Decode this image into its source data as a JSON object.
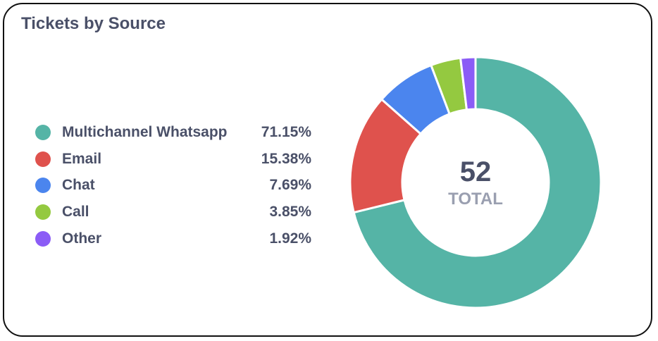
{
  "card": {
    "title": "Tickets by Source"
  },
  "center": {
    "total": "52",
    "label": "TOTAL"
  },
  "legend": {
    "items": [
      {
        "label": "Multichannel Whatsapp",
        "value": "71.15%",
        "color": "#55b4a6"
      },
      {
        "label": "Email",
        "value": "15.38%",
        "color": "#df524d"
      },
      {
        "label": "Chat",
        "value": "7.69%",
        "color": "#4b85ee"
      },
      {
        "label": "Call",
        "value": "3.85%",
        "color": "#94c940"
      },
      {
        "label": "Other",
        "value": "1.92%",
        "color": "#8b5cf6"
      }
    ]
  },
  "chart_data": {
    "type": "pie",
    "title": "Tickets by Source",
    "total": 52,
    "categories": [
      "Multichannel Whatsapp",
      "Email",
      "Chat",
      "Call",
      "Other"
    ],
    "values": [
      71.15,
      15.38,
      7.69,
      3.85,
      1.92
    ],
    "colors": [
      "#55b4a6",
      "#df524d",
      "#4b85ee",
      "#94c940",
      "#8b5cf6"
    ],
    "legend_position": "left"
  }
}
